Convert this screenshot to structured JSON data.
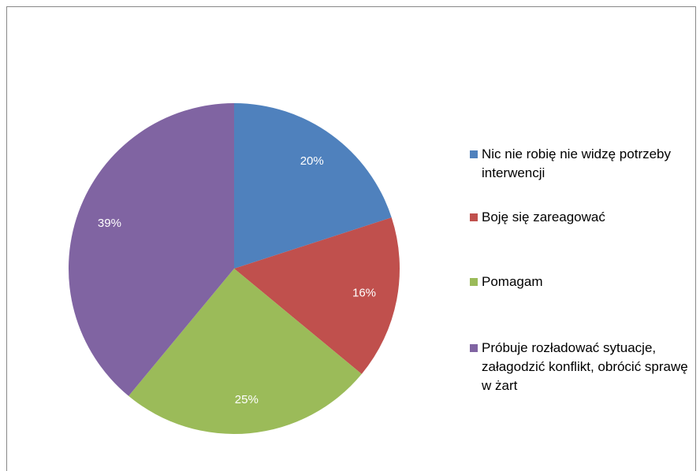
{
  "chart_data": {
    "type": "pie",
    "categories": [
      "Nic nie robię nie widzę potrzeby interwencji",
      "Boję się zareagować",
      "Pomagam",
      "Próbuje rozładować sytuacje, załagodzić konflikt, obrócić sprawę w żart"
    ],
    "values": [
      20,
      16,
      25,
      39
    ],
    "value_labels": [
      "20%",
      "16%",
      "25%",
      "39%"
    ],
    "colors": [
      "#4f81bd",
      "#c0504d",
      "#9bbb59",
      "#8064a2"
    ],
    "legend": "right"
  }
}
